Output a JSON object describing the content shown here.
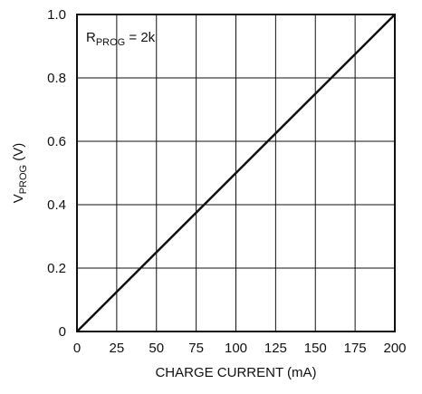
{
  "chart_data": {
    "type": "line",
    "title": "",
    "xlabel": "CHARGE CURRENT (mA)",
    "ylabel": {
      "main": "V",
      "sub": "PROG",
      "rest": " (V)"
    },
    "annotation": {
      "main": "R",
      "sub": "PROG",
      "rest": " = 2k"
    },
    "xlim": [
      0,
      200
    ],
    "ylim": [
      0,
      1.0
    ],
    "x_ticks": [
      0,
      25,
      50,
      75,
      100,
      125,
      150,
      175,
      200
    ],
    "y_ticks": [
      0,
      0.2,
      0.4,
      0.6,
      0.8,
      1.0
    ],
    "x_tick_labels": [
      "0",
      "25",
      "50",
      "75",
      "100",
      "125",
      "150",
      "175",
      "200"
    ],
    "y_tick_labels": [
      "0",
      "0.2",
      "0.4",
      "0.6",
      "0.8",
      "1.0"
    ],
    "grid": true,
    "series": [
      {
        "x": [
          0,
          200
        ],
        "y": [
          0,
          1.0
        ],
        "color": "#111111"
      }
    ]
  }
}
